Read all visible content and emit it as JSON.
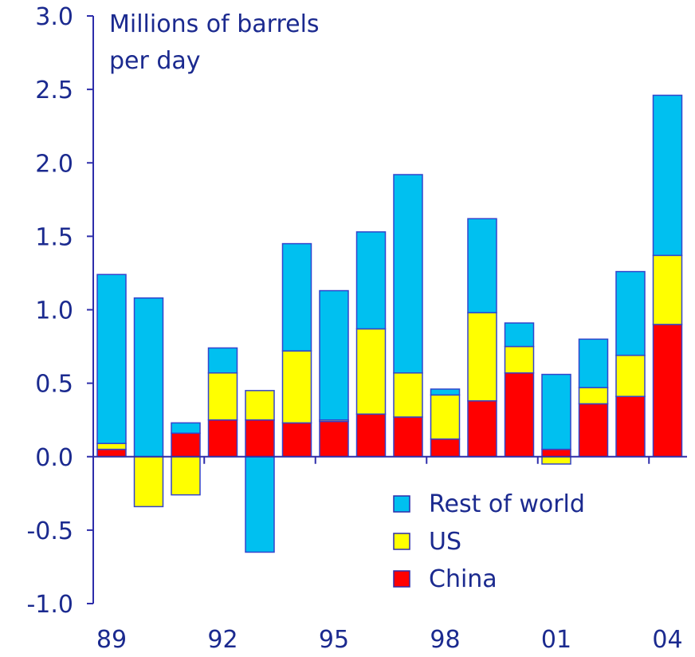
{
  "chart_data": {
    "type": "bar",
    "stacked": true,
    "ylabel_lines": [
      "Millions of barrels",
      "per day"
    ],
    "ylim": [
      -1.0,
      3.0
    ],
    "yticks": [
      "3.0",
      "2.5",
      "2.0",
      "1.5",
      "1.0",
      "0.5",
      "0.0",
      "-0.5",
      "-1.0"
    ],
    "ytick_values": [
      3.0,
      2.5,
      2.0,
      1.5,
      1.0,
      0.5,
      0.0,
      -0.5,
      -1.0
    ],
    "years": [
      "89",
      "90",
      "91",
      "92",
      "93",
      "94",
      "95",
      "96",
      "97",
      "98",
      "99",
      "00",
      "01",
      "02",
      "03",
      "04"
    ],
    "xtick_labels": [
      {
        "label": "89",
        "index": 0
      },
      {
        "label": "92",
        "index": 3
      },
      {
        "label": "95",
        "index": 6
      },
      {
        "label": "98",
        "index": 9
      },
      {
        "label": "01",
        "index": 12
      },
      {
        "label": "04",
        "index": 15
      }
    ],
    "series": [
      {
        "name": "China",
        "color": "#ff0000",
        "values": [
          0.05,
          0.0,
          0.16,
          0.25,
          0.25,
          0.23,
          0.24,
          0.29,
          0.27,
          0.12,
          0.38,
          0.57,
          0.05,
          0.36,
          0.41,
          0.9
        ]
      },
      {
        "name": "US",
        "color": "#ffff00",
        "values": [
          0.04,
          -0.34,
          -0.26,
          0.32,
          0.2,
          0.49,
          0.01,
          0.58,
          0.3,
          0.3,
          0.6,
          0.18,
          -0.05,
          0.11,
          0.28,
          0.47
        ]
      },
      {
        "name": "Rest of world",
        "color": "#00c0f0",
        "values": [
          1.15,
          1.08,
          0.07,
          0.17,
          -0.65,
          0.73,
          0.88,
          0.66,
          1.35,
          0.04,
          0.64,
          0.16,
          0.51,
          0.33,
          0.57,
          1.09
        ]
      }
    ],
    "legend": {
      "placement": "bottom-right",
      "entries": [
        {
          "label": "Rest of world",
          "color": "#00c0f0"
        },
        {
          "label": "US",
          "color": "#ffff00"
        },
        {
          "label": "China",
          "color": "#ff0000"
        }
      ]
    },
    "axis_color": "#2d2daa",
    "text_color": "#1b2a8f",
    "bar_outline": "#3344cc",
    "grid": false
  }
}
